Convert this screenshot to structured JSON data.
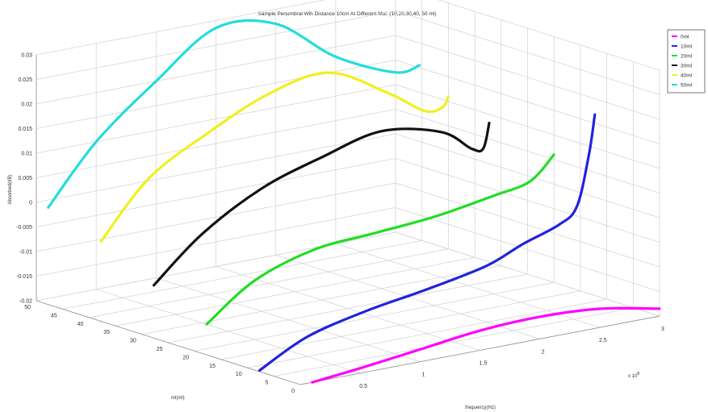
{
  "chart_data": {
    "type": "line",
    "title": "Sample Penumbral Wih Distance 10cm  At Different Mul. (10,20,30,40, 50 ml)",
    "xlabel": "frequency(Hz)",
    "ylabel": "ml(ml)",
    "zlabel": "Absorbed(dB)",
    "x_multiplier": "x 10^8",
    "x_ticks": [
      "0.5",
      "1",
      "1.5",
      "2",
      "2.5",
      "3"
    ],
    "y_ticks": [
      "0",
      "5",
      "10",
      "15",
      "20",
      "25",
      "30",
      "35",
      "40",
      "45",
      "50"
    ],
    "z_ticks": [
      "0.03",
      "0.025",
      "0.02",
      "0.015",
      "0.01",
      "0.005",
      "0",
      "-0.005",
      "-0.01",
      "-0.015",
      "-0.02"
    ],
    "xlim": [
      0,
      3
    ],
    "ylim": [
      0,
      50
    ],
    "zlim": [
      -0.02,
      0.03
    ],
    "grid": true,
    "legend_position": "top-right",
    "series": [
      {
        "name": "0ml",
        "color": "#ff00ff",
        "y": 0,
        "x": [
          0.1,
          0.5,
          1.0,
          1.5,
          2.0,
          2.5,
          3.0
        ],
        "z": [
          -0.02,
          -0.019,
          -0.0175,
          -0.016,
          -0.0155,
          -0.0162,
          -0.0185
        ]
      },
      {
        "name": "10ml",
        "color": "#2222dd",
        "y": 10,
        "x": [
          0.1,
          0.5,
          1.0,
          1.5,
          2.0,
          2.3,
          2.6,
          2.75,
          2.85,
          2.9
        ],
        "z": [
          -0.021,
          -0.016,
          -0.013,
          -0.011,
          -0.0085,
          -0.0055,
          -0.003,
          0.0,
          0.01,
          0.018
        ]
      },
      {
        "name": "20ml",
        "color": "#22dd22",
        "y": 20,
        "x": [
          0.1,
          0.5,
          1.0,
          1.5,
          2.0,
          2.5,
          2.8,
          3.0
        ],
        "z": [
          -0.015,
          -0.008,
          -0.004,
          -0.003,
          -0.002,
          0.0,
          0.0015,
          0.006
        ]
      },
      {
        "name": "30ml",
        "color": "#111111",
        "y": 30,
        "x": [
          0.1,
          0.5,
          1.0,
          1.5,
          2.0,
          2.5,
          2.75,
          2.85,
          2.9
        ],
        "z": [
          -0.0105,
          -0.002,
          0.005,
          0.009,
          0.012,
          0.0095,
          0.005,
          0.0045,
          0.0095
        ]
      },
      {
        "name": "40ml",
        "color": "#f0f020",
        "y": 40,
        "x": [
          0.1,
          0.5,
          1.0,
          1.5,
          2.0,
          2.5,
          2.8,
          2.95,
          3.0
        ],
        "z": [
          -0.005,
          0.006,
          0.013,
          0.0185,
          0.0205,
          0.014,
          0.009,
          0.009,
          0.011
        ]
      },
      {
        "name": "50ml",
        "color": "#22dddd",
        "y": 50,
        "x": [
          0.1,
          0.5,
          1.0,
          1.5,
          2.0,
          2.5,
          3.0,
          3.2
        ],
        "z": [
          -0.0015,
          0.01,
          0.02,
          0.0285,
          0.027,
          0.018,
          0.0125,
          0.013
        ]
      }
    ]
  }
}
